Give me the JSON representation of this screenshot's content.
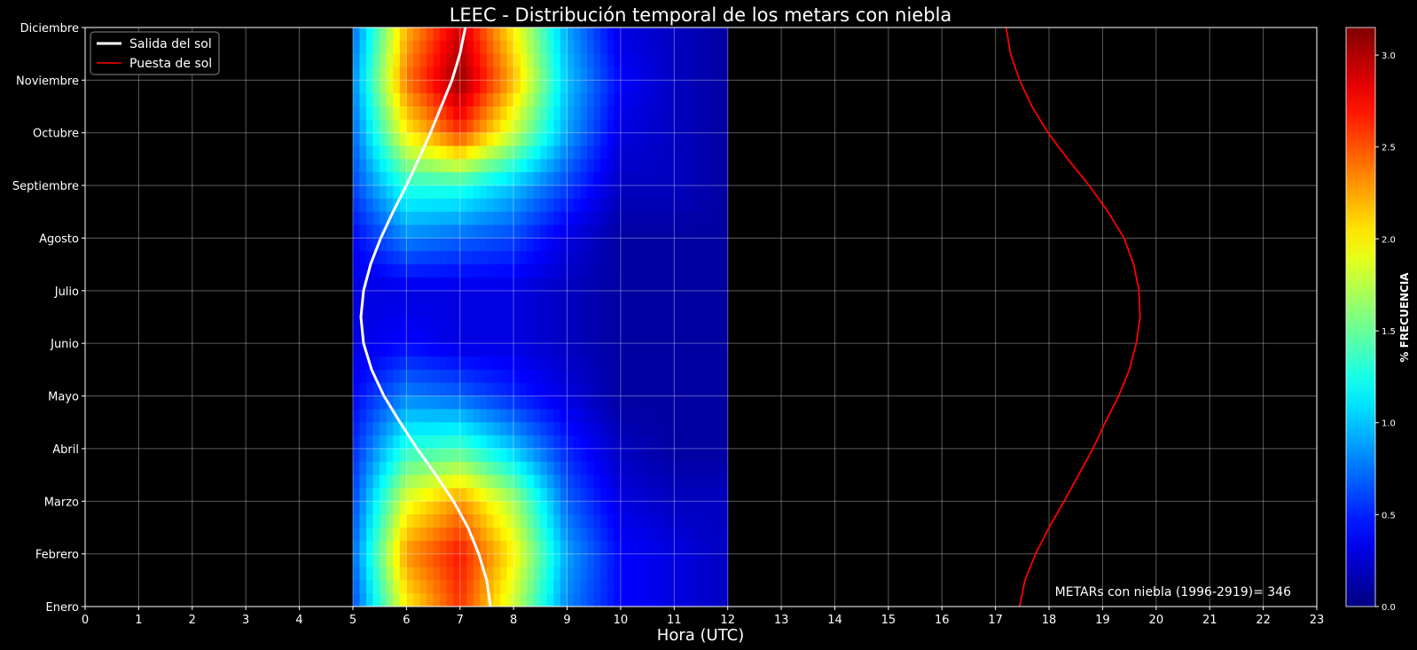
{
  "chart_data": {
    "type": "heatmap",
    "title": "LEEC - Distribución temporal de los metars con niebla",
    "xlabel": "Hora (UTC)",
    "ylabel": "",
    "xlim": [
      0,
      23
    ],
    "ylim": [
      0,
      11
    ],
    "x_ticks": [
      0,
      1,
      2,
      3,
      4,
      5,
      6,
      7,
      8,
      9,
      10,
      11,
      12,
      13,
      14,
      15,
      16,
      17,
      18,
      19,
      20,
      21,
      22,
      23
    ],
    "x_tick_labels": [
      "0",
      "1",
      "2",
      "3",
      "4",
      "5",
      "6",
      "7",
      "8",
      "9",
      "10",
      "11",
      "12",
      "13",
      "14",
      "15",
      "16",
      "17",
      "18",
      "19",
      "20",
      "21",
      "22",
      "23"
    ],
    "y_tick_labels": [
      "Enero",
      "Febrero",
      "Marzo",
      "Abril",
      "Mayo",
      "Junio",
      "Julio",
      "Agosto",
      "Septiembre",
      "Octubre",
      "Noviembre",
      "Diciembre"
    ],
    "grid": true,
    "legend_position": "top-left",
    "annotation": "METARs con niebla (1996-2919)= 346",
    "heatmap": {
      "hours": [
        5,
        6,
        7,
        8,
        9,
        10,
        11,
        12
      ],
      "months": [
        "Enero",
        "Febrero",
        "Marzo",
        "Abril",
        "Mayo",
        "Junio",
        "Julio",
        "Agosto",
        "Septiembre",
        "Octubre",
        "Noviembre",
        "Diciembre"
      ],
      "values": [
        [
          0.6,
          2.0,
          2.6,
          1.8,
          0.8,
          0.4,
          0.3,
          0.2
        ],
        [
          0.7,
          2.3,
          2.7,
          2.0,
          0.9,
          0.4,
          0.3,
          0.2
        ],
        [
          0.6,
          1.9,
          2.3,
          1.7,
          0.7,
          0.3,
          0.2,
          0.2
        ],
        [
          0.5,
          1.3,
          1.4,
          1.0,
          0.5,
          0.2,
          0.1,
          0.1
        ],
        [
          0.4,
          0.8,
          0.7,
          0.5,
          0.3,
          0.1,
          0.1,
          0.1
        ],
        [
          0.3,
          0.4,
          0.3,
          0.3,
          0.2,
          0.1,
          0.1,
          0.1
        ],
        [
          0.3,
          0.3,
          0.3,
          0.3,
          0.2,
          0.1,
          0.1,
          0.1
        ],
        [
          0.4,
          0.8,
          0.7,
          0.6,
          0.3,
          0.1,
          0.1,
          0.1
        ],
        [
          0.6,
          1.3,
          1.3,
          1.0,
          0.6,
          0.2,
          0.2,
          0.1
        ],
        [
          0.7,
          2.0,
          2.6,
          1.8,
          0.9,
          0.3,
          0.2,
          0.1
        ],
        [
          0.8,
          2.4,
          3.1,
          2.2,
          1.0,
          0.4,
          0.2,
          0.1
        ],
        [
          0.7,
          2.2,
          2.9,
          2.0,
          0.9,
          0.3,
          0.2,
          0.1
        ]
      ]
    },
    "colorbar": {
      "label": "%  FRECUENCIA",
      "min": 0.0,
      "max": 3.15,
      "ticks": [
        0.0,
        0.5,
        1.0,
        1.5,
        2.0,
        2.5,
        3.0
      ],
      "tick_labels": [
        "0.0",
        "0.5",
        "1.0",
        "1.5",
        "2.0",
        "2.5",
        "3.0"
      ],
      "colormap": "jet"
    },
    "series": [
      {
        "name": "Salida del sol",
        "color": "#ffffff",
        "points": [
          [
            7.57,
            0
          ],
          [
            7.5,
            0.5
          ],
          [
            7.35,
            1
          ],
          [
            7.15,
            1.5
          ],
          [
            6.88,
            2
          ],
          [
            6.55,
            2.5
          ],
          [
            6.2,
            3
          ],
          [
            5.88,
            3.5
          ],
          [
            5.58,
            4
          ],
          [
            5.35,
            4.5
          ],
          [
            5.2,
            5
          ],
          [
            5.15,
            5.5
          ],
          [
            5.2,
            6
          ],
          [
            5.33,
            6.5
          ],
          [
            5.52,
            7
          ],
          [
            5.75,
            7.5
          ],
          [
            6.0,
            8
          ],
          [
            6.23,
            8.5
          ],
          [
            6.45,
            9
          ],
          [
            6.65,
            9.5
          ],
          [
            6.85,
            10
          ],
          [
            7.0,
            10.5
          ],
          [
            7.1,
            11
          ]
        ]
      },
      {
        "name": "Puesta de sol",
        "color": "#ff0000",
        "points": [
          [
            17.45,
            0
          ],
          [
            17.55,
            0.5
          ],
          [
            17.75,
            1
          ],
          [
            18.0,
            1.5
          ],
          [
            18.28,
            2
          ],
          [
            18.55,
            2.5
          ],
          [
            18.82,
            3
          ],
          [
            19.05,
            3.5
          ],
          [
            19.3,
            4
          ],
          [
            19.5,
            4.5
          ],
          [
            19.63,
            5
          ],
          [
            19.7,
            5.5
          ],
          [
            19.68,
            6
          ],
          [
            19.58,
            6.5
          ],
          [
            19.4,
            7
          ],
          [
            19.1,
            7.5
          ],
          [
            18.75,
            8
          ],
          [
            18.35,
            8.5
          ],
          [
            17.98,
            9
          ],
          [
            17.68,
            9.5
          ],
          [
            17.45,
            10
          ],
          [
            17.28,
            10.5
          ],
          [
            17.2,
            11
          ]
        ]
      }
    ]
  }
}
